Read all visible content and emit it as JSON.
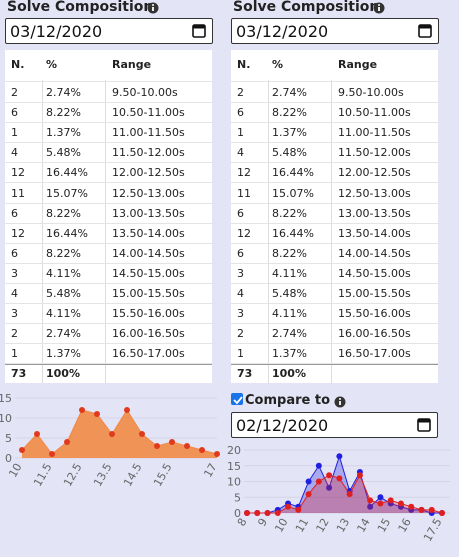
{
  "panels": [
    {
      "title": "Solve Composition",
      "date": "03/12/2020",
      "table": {
        "header": [
          "N.",
          "%",
          "Range"
        ],
        "rows": [
          [
            "2",
            "2.74%",
            "9.50-10.00s"
          ],
          [
            "6",
            "8.22%",
            "10.50-11.00s"
          ],
          [
            "1",
            "1.37%",
            "11.00-11.50s"
          ],
          [
            "4",
            "5.48%",
            "11.50-12.00s"
          ],
          [
            "12",
            "16.44%",
            "12.00-12.50s"
          ],
          [
            "11",
            "15.07%",
            "12.50-13.00s"
          ],
          [
            "6",
            "8.22%",
            "13.00-13.50s"
          ],
          [
            "12",
            "16.44%",
            "13.50-14.00s"
          ],
          [
            "6",
            "8.22%",
            "14.00-14.50s"
          ],
          [
            "3",
            "4.11%",
            "14.50-15.00s"
          ],
          [
            "4",
            "5.48%",
            "15.00-15.50s"
          ],
          [
            "3",
            "4.11%",
            "15.50-16.00s"
          ],
          [
            "2",
            "2.74%",
            "16.00-16.50s"
          ],
          [
            "1",
            "1.37%",
            "16.50-17.00s"
          ]
        ],
        "total": [
          "73",
          "100%"
        ]
      }
    },
    {
      "title": "Solve Composition",
      "date": "03/12/2020",
      "table": {
        "header": [
          "N.",
          "%",
          "Range"
        ],
        "rows": [
          [
            "2",
            "2.74%",
            "9.50-10.00s"
          ],
          [
            "6",
            "8.22%",
            "10.50-11.00s"
          ],
          [
            "1",
            "1.37%",
            "11.00-11.50s"
          ],
          [
            "4",
            "5.48%",
            "11.50-12.00s"
          ],
          [
            "12",
            "16.44%",
            "12.00-12.50s"
          ],
          [
            "11",
            "15.07%",
            "12.50-13.00s"
          ],
          [
            "6",
            "8.22%",
            "13.00-13.50s"
          ],
          [
            "12",
            "16.44%",
            "13.50-14.00s"
          ],
          [
            "6",
            "8.22%",
            "14.00-14.50s"
          ],
          [
            "3",
            "4.11%",
            "14.50-15.00s"
          ],
          [
            "4",
            "5.48%",
            "15.00-15.50s"
          ],
          [
            "3",
            "4.11%",
            "15.50-16.00s"
          ],
          [
            "2",
            "2.74%",
            "16.00-16.50s"
          ],
          [
            "1",
            "1.37%",
            "16.50-17.00s"
          ]
        ],
        "total": [
          "73",
          "100%"
        ]
      }
    }
  ],
  "compare": {
    "label": "Compare to",
    "date": "02/12/2020"
  },
  "chart_data": [
    {
      "type": "area",
      "categories": [
        "10",
        null,
        "11.5",
        null,
        "12.5",
        null,
        "13.5",
        null,
        "14.5",
        null,
        "15.5",
        null,
        null,
        "17"
      ],
      "series": [
        {
          "color": "#f08a44",
          "values": [
            2,
            6,
            1,
            4,
            12,
            11,
            6,
            12,
            6,
            3,
            4,
            3,
            2,
            1
          ]
        }
      ],
      "ylim": [
        0,
        15
      ],
      "yticks": [
        0,
        5,
        10,
        15
      ]
    },
    {
      "type": "area",
      "categories": [
        "8",
        null,
        "9",
        null,
        "10",
        null,
        "11",
        null,
        "12",
        null,
        "13",
        null,
        "14",
        null,
        "15",
        null,
        "16",
        null,
        null,
        "17.5"
      ],
      "series": [
        {
          "color": "#2020e0",
          "values": [
            0,
            0,
            0,
            1,
            3,
            2,
            10,
            15,
            8,
            18,
            7,
            13,
            2,
            5,
            3,
            2,
            1,
            1,
            0,
            0
          ]
        },
        {
          "color": "#e02020",
          "values": [
            0,
            0,
            0,
            0,
            2,
            1,
            6,
            10,
            12,
            11,
            6,
            12,
            4,
            3,
            4,
            3,
            2,
            1,
            1,
            0
          ]
        }
      ],
      "ylim": [
        0,
        20
      ],
      "yticks": [
        0,
        5,
        10,
        15,
        20
      ]
    }
  ]
}
